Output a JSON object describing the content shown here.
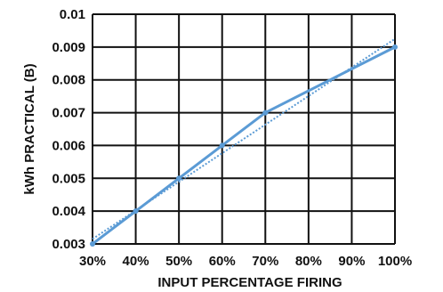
{
  "chart_data": {
    "type": "line",
    "title": "",
    "xlabel": "INPUT PERCENTAGE FIRING",
    "ylabel": "kWh PRACTICAL (B)",
    "x": [
      30,
      40,
      50,
      60,
      70,
      80,
      90,
      100
    ],
    "x_tick_labels": [
      "30%",
      "40%",
      "50%",
      "60%",
      "70%",
      "80%",
      "90%",
      "100%"
    ],
    "y_tick_labels": [
      "0.003",
      "0.004",
      "0.005",
      "0.006",
      "0.007",
      "0.008",
      "0.009",
      "0.01"
    ],
    "xlim": [
      30,
      100
    ],
    "ylim": [
      0.003,
      0.01
    ],
    "grid": true,
    "series": [
      {
        "style": "solid-with-markers",
        "color": "#5b9bd5",
        "points": [
          {
            "x": 30,
            "y": 0.003
          },
          {
            "x": 40,
            "y": 0.004
          },
          {
            "x": 50,
            "y": 0.005
          },
          {
            "x": 60,
            "y": 0.006
          },
          {
            "x": 70,
            "y": 0.007
          },
          {
            "x": 100,
            "y": 0.009
          }
        ]
      },
      {
        "style": "dotted-trendline",
        "color": "#5b9bd5",
        "points": [
          {
            "x": 30,
            "y": 0.00315
          },
          {
            "x": 100,
            "y": 0.00925
          }
        ]
      }
    ]
  }
}
